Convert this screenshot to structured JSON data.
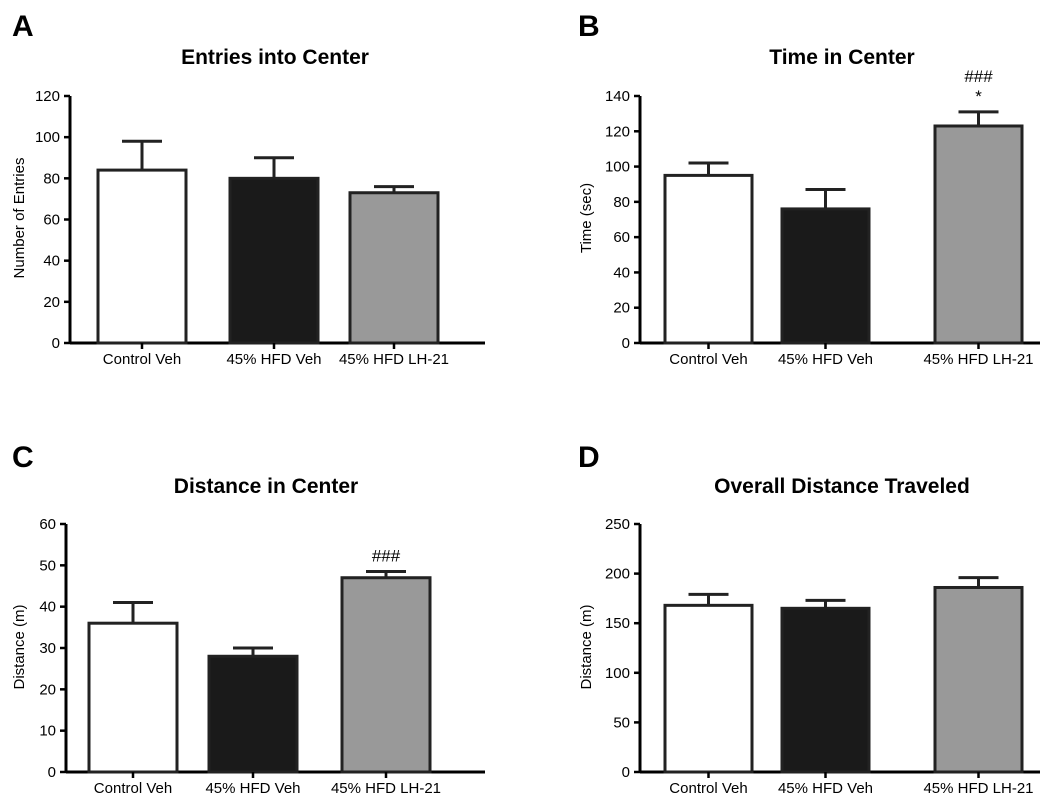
{
  "chart_data": [
    {
      "type": "bar",
      "panel": "A",
      "title": "Entries into Center",
      "ylabel": "Number of Entries",
      "xlabel": "",
      "ylim": [
        0,
        120
      ],
      "yticks": [
        "0",
        "20",
        "40",
        "60",
        "80",
        "100",
        "120"
      ],
      "categories": [
        "Control Veh",
        "45% HFD Veh",
        "45% HFD LH-21"
      ],
      "values": [
        84,
        80,
        73
      ],
      "errors": [
        14,
        10,
        3
      ],
      "colors": [
        "#ffffff",
        "#1a1a1a",
        "#999999"
      ],
      "annotations": [
        "",
        "",
        ""
      ]
    },
    {
      "type": "bar",
      "panel": "B",
      "title": "Time in Center",
      "ylabel": "Time (sec)",
      "xlabel": "",
      "ylim": [
        0,
        140
      ],
      "yticks": [
        "0",
        "20",
        "40",
        "60",
        "80",
        "100",
        "120",
        "140"
      ],
      "categories": [
        "Control Veh",
        "45% HFD Veh",
        "45% HFD LH-21"
      ],
      "values": [
        95,
        76,
        123
      ],
      "errors": [
        7,
        11,
        8
      ],
      "colors": [
        "#ffffff",
        "#1a1a1a",
        "#999999"
      ],
      "annotations": [
        "",
        "",
        "###\n*"
      ]
    },
    {
      "type": "bar",
      "panel": "C",
      "title": "Distance in Center",
      "ylabel": "Distance (m)",
      "xlabel": "",
      "ylim": [
        0,
        60
      ],
      "yticks": [
        "0",
        "10",
        "20",
        "30",
        "40",
        "50",
        "60"
      ],
      "categories": [
        "Control Veh",
        "45% HFD Veh",
        "45% HFD LH-21"
      ],
      "values": [
        36,
        28,
        47
      ],
      "errors": [
        5,
        2,
        1.5
      ],
      "colors": [
        "#ffffff",
        "#1a1a1a",
        "#999999"
      ],
      "annotations": [
        "",
        "",
        "###"
      ]
    },
    {
      "type": "bar",
      "panel": "D",
      "title": "Overall Distance Traveled",
      "ylabel": "Distance (m)",
      "xlabel": "",
      "ylim": [
        0,
        250
      ],
      "yticks": [
        "0",
        "50",
        "100",
        "150",
        "200",
        "250"
      ],
      "categories": [
        "Control Veh",
        "45% HFD Veh",
        "45% HFD LH-21"
      ],
      "values": [
        168,
        165,
        186
      ],
      "errors": [
        11,
        8,
        10
      ],
      "colors": [
        "#ffffff",
        "#1a1a1a",
        "#999999"
      ],
      "annotations": [
        "",
        "",
        ""
      ]
    }
  ]
}
